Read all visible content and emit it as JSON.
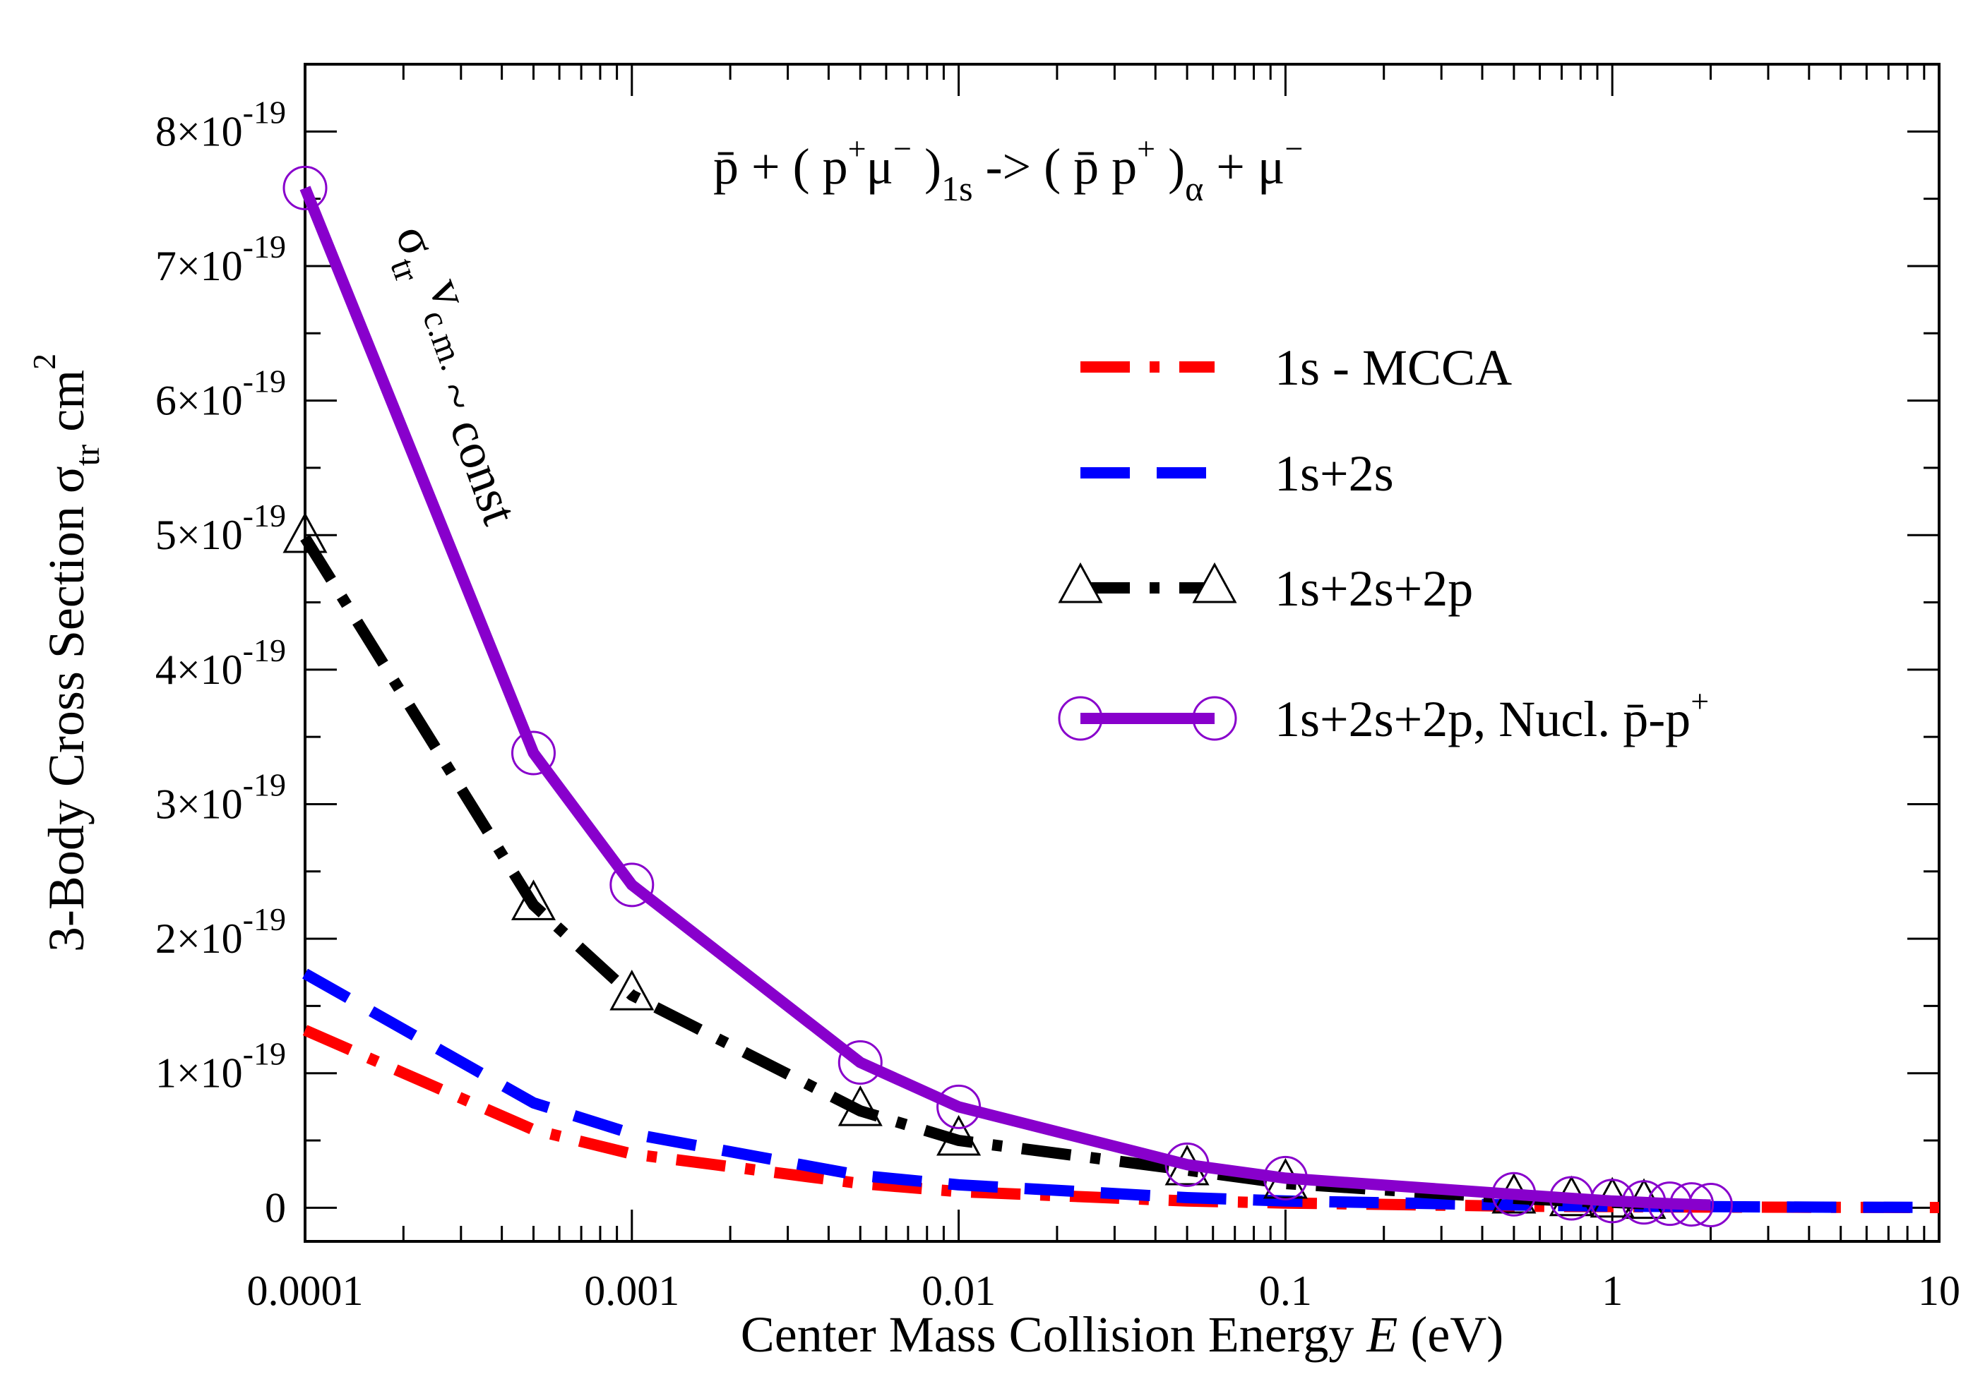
{
  "chart_data": {
    "type": "line",
    "xscale": "log",
    "xlim": [
      0.0001,
      10
    ],
    "ylim": [
      -2.5e-20,
      8.5e-19
    ],
    "xlabel": {
      "prefix": "Center Mass Collision Energy ",
      "var": "E",
      "suffix": " (eV)"
    },
    "ylabel": {
      "main": "3-Body Cross Section  σ",
      "sub": "tr",
      "unit": "cm",
      "sup": "2"
    },
    "x_ticks": [
      {
        "v": 0.0001,
        "label": "0.0001"
      },
      {
        "v": 0.001,
        "label": "0.001"
      },
      {
        "v": 0.01,
        "label": "0.01"
      },
      {
        "v": 0.1,
        "label": "0.1"
      },
      {
        "v": 1,
        "label": "1"
      },
      {
        "v": 10,
        "label": "10"
      }
    ],
    "y_ticks": [
      {
        "v": 0,
        "mant": "0",
        "exp": ""
      },
      {
        "v": 1e-19,
        "mant": "1×10",
        "exp": "-19"
      },
      {
        "v": 2e-19,
        "mant": "2×10",
        "exp": "-19"
      },
      {
        "v": 3e-19,
        "mant": "3×10",
        "exp": "-19"
      },
      {
        "v": 4e-19,
        "mant": "4×10",
        "exp": "-19"
      },
      {
        "v": 5e-19,
        "mant": "5×10",
        "exp": "-19"
      },
      {
        "v": 6e-19,
        "mant": "6×10",
        "exp": "-19"
      },
      {
        "v": 7e-19,
        "mant": "7×10",
        "exp": "-19"
      },
      {
        "v": 8e-19,
        "mant": "8×10",
        "exp": "-19"
      }
    ],
    "reaction": {
      "p1": "p̄ + ( p",
      "p1sup": "+",
      "p2": "μ",
      "p2sup": "−",
      "p3": " )",
      "p3sub": "1s",
      "p4": " -> ( p̄ p",
      "p4sup": "+",
      "p5": " )",
      "p5sub": "α",
      "p6": " + μ",
      "p6sup": "−"
    },
    "annotation": {
      "sigma": "σ",
      "sigma_sub": "tr",
      "v": "v",
      "v_sub": "c.m.",
      "rest": "~ const"
    },
    "series": [
      {
        "name": "1s - MCCA",
        "color": "#ff0000",
        "style": "dashdot",
        "marker": "none",
        "x": [
          0.0001,
          0.0005,
          0.001,
          0.005,
          0.01,
          0.05,
          0.1,
          0.5,
          1,
          2,
          5,
          10
        ],
        "y": [
          1.32e-19,
          5.8e-20,
          4e-20,
          1.8e-20,
          1.2e-20,
          5e-21,
          3.5e-21,
          1.2e-21,
          8e-22,
          5e-22,
          3e-22,
          2e-22
        ]
      },
      {
        "name": "1s+2s",
        "color": "#0000ff",
        "style": "dashed",
        "marker": "none",
        "x": [
          0.0001,
          0.0005,
          0.001,
          0.005,
          0.01,
          0.05,
          0.1,
          0.5,
          1,
          2,
          5,
          10
        ],
        "y": [
          1.74e-19,
          7.8e-20,
          5.5e-20,
          2.4e-20,
          1.7e-20,
          7.5e-21,
          5e-21,
          2e-21,
          1.2e-21,
          8e-22,
          4e-22,
          3e-22
        ]
      },
      {
        "name": "1s+2s+2p",
        "color": "#000000",
        "style": "dashdot",
        "marker": "triangle",
        "x": [
          0.0001,
          0.0005,
          0.001,
          0.005,
          0.01,
          0.05,
          0.1,
          0.5,
          0.75,
          1,
          1.25
        ],
        "y": [
          4.98e-19,
          2.25e-19,
          1.58e-19,
          7.2e-20,
          5e-20,
          2.8e-20,
          1.8e-20,
          7e-21,
          5e-21,
          4e-21,
          3e-21
        ]
      },
      {
        "name": "1s+2s+2p, Nucl. p̄-p",
        "name_sup": "+",
        "color": "#8800cc",
        "style": "solid",
        "marker": "circle",
        "x": [
          0.0001,
          0.0005,
          0.001,
          0.005,
          0.01,
          0.05,
          0.1,
          0.5,
          0.75,
          1,
          1.25,
          1.5,
          1.75,
          2
        ],
        "y": [
          7.58e-19,
          3.38e-19,
          2.4e-19,
          1.08e-19,
          7.5e-20,
          3.2e-20,
          2.2e-20,
          1e-20,
          7e-21,
          5e-21,
          4e-21,
          3e-21,
          2.5e-21,
          2e-21
        ]
      }
    ]
  }
}
